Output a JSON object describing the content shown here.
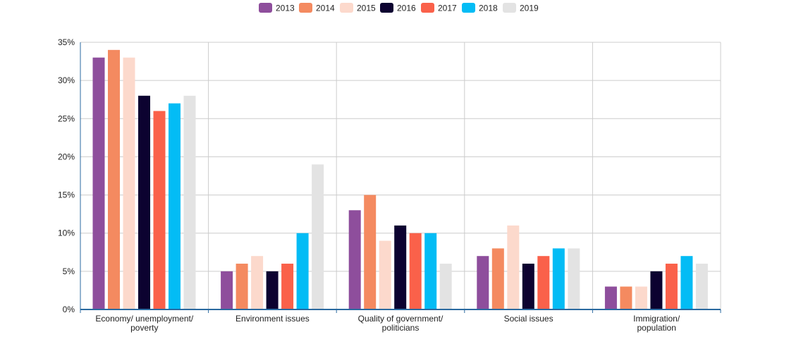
{
  "chart_data": {
    "type": "bar",
    "title": "",
    "xlabel": "",
    "ylabel": "",
    "ylim": [
      0,
      35
    ],
    "y_ticks": [
      0,
      5,
      10,
      15,
      20,
      25,
      30,
      35
    ],
    "y_tick_labels": [
      "0%",
      "5%",
      "10%",
      "15%",
      "20%",
      "25%",
      "30%",
      "35%"
    ],
    "grid": true,
    "legend_position": "top-center",
    "categories": [
      [
        "Economy/ unemployment/",
        "poverty"
      ],
      [
        "Environment issues"
      ],
      [
        "Quality of government/",
        "politicians"
      ],
      [
        "Social issues"
      ],
      [
        "Immigration/",
        "population"
      ]
    ],
    "series": [
      {
        "name": "2013",
        "color": "#8e4e9c",
        "values": [
          33,
          5,
          13,
          7,
          3
        ]
      },
      {
        "name": "2014",
        "color": "#f48a60",
        "values": [
          34,
          6,
          15,
          8,
          3
        ]
      },
      {
        "name": "2015",
        "color": "#fcd9cc",
        "values": [
          33,
          7,
          9,
          11,
          3
        ]
      },
      {
        "name": "2016",
        "color": "#0c0230",
        "values": [
          28,
          5,
          11,
          6,
          5
        ]
      },
      {
        "name": "2017",
        "color": "#fa614a",
        "values": [
          26,
          6,
          10,
          7,
          6
        ]
      },
      {
        "name": "2018",
        "color": "#03bcf5",
        "values": [
          27,
          10,
          10,
          8,
          7
        ]
      },
      {
        "name": "2019",
        "color": "#e3e3e3",
        "values": [
          28,
          19,
          6,
          8,
          6
        ]
      }
    ]
  }
}
